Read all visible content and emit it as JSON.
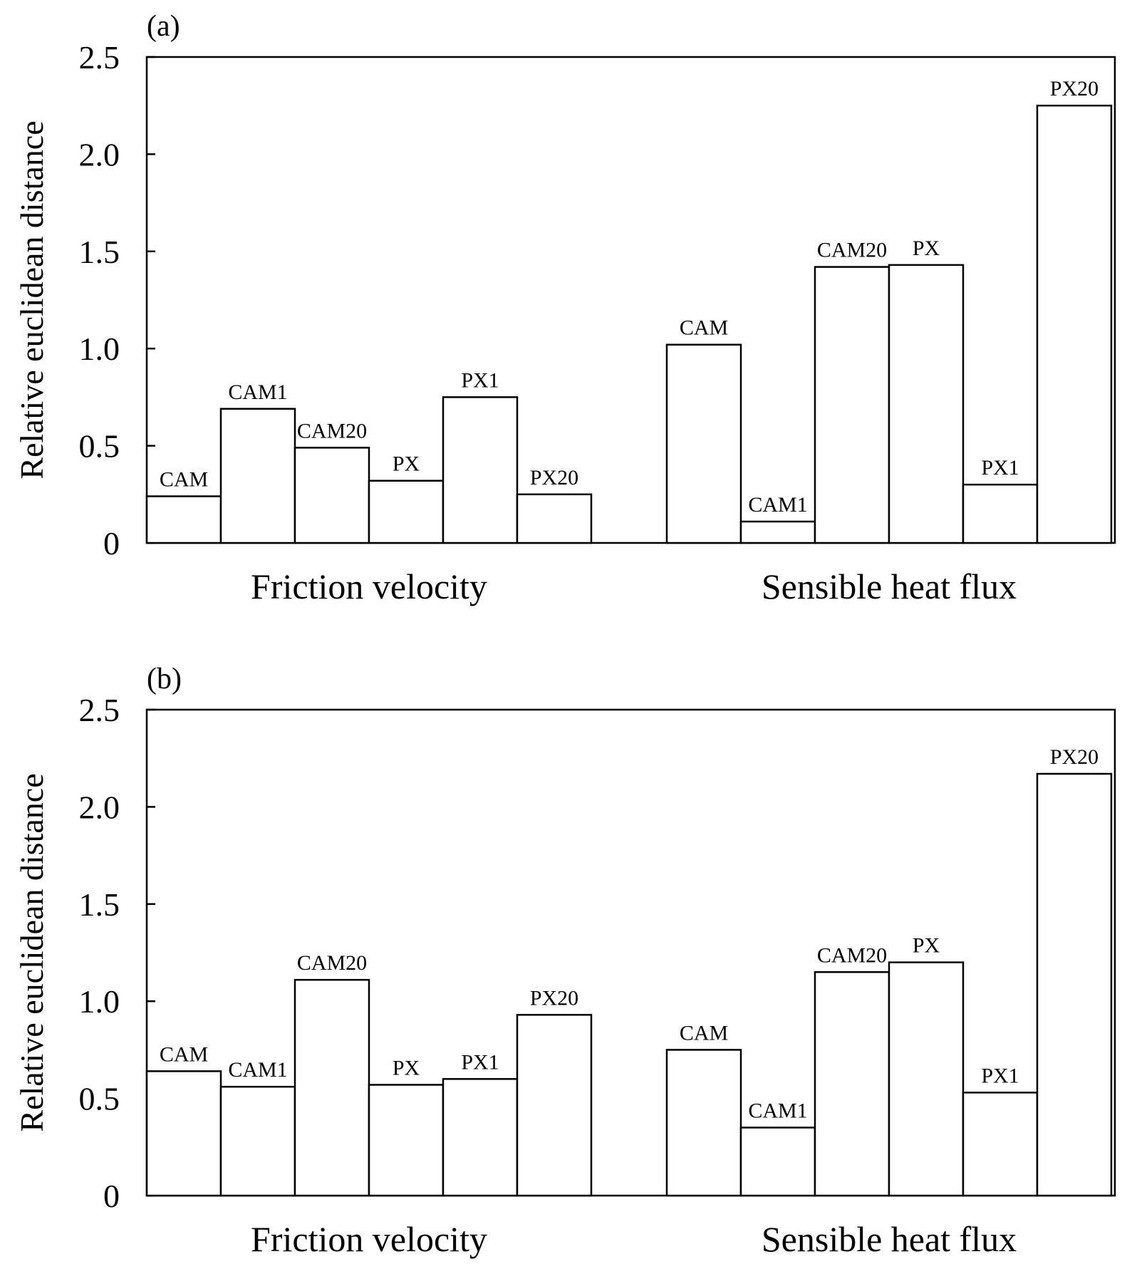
{
  "chart_data": [
    {
      "type": "bar",
      "panel_label": "(a)",
      "ylabel": "Relative euclidean distance",
      "ylim": [
        0,
        2.5
      ],
      "yticks": [
        "0",
        "0.5",
        "1.0",
        "1.5",
        "2.0",
        "2.5"
      ],
      "groups": [
        {
          "name": "Friction velocity",
          "categories": [
            "CAM",
            "CAM1",
            "CAM20",
            "PX",
            "PX1",
            "PX20"
          ],
          "values": [
            0.24,
            0.69,
            0.49,
            0.32,
            0.75,
            0.25
          ]
        },
        {
          "name": "Sensible heat flux",
          "categories": [
            "CAM",
            "CAM1",
            "CAM20",
            "PX",
            "PX1",
            "PX20"
          ],
          "values": [
            1.02,
            0.11,
            1.42,
            1.43,
            0.3,
            2.25
          ]
        }
      ],
      "grid": false
    },
    {
      "type": "bar",
      "panel_label": "(b)",
      "ylabel": "Relative euclidean distance",
      "ylim": [
        0,
        2.5
      ],
      "yticks": [
        "0",
        "0.5",
        "1.0",
        "1.5",
        "2.0",
        "2.5"
      ],
      "groups": [
        {
          "name": "Friction velocity",
          "categories": [
            "CAM",
            "CAM1",
            "CAM20",
            "PX",
            "PX1",
            "PX20"
          ],
          "values": [
            0.64,
            0.56,
            1.11,
            0.57,
            0.6,
            0.93
          ]
        },
        {
          "name": "Sensible heat flux",
          "categories": [
            "CAM",
            "CAM1",
            "CAM20",
            "PX",
            "PX1",
            "PX20"
          ],
          "values": [
            0.75,
            0.35,
            1.15,
            1.2,
            0.53,
            2.17
          ]
        }
      ],
      "grid": false
    }
  ]
}
